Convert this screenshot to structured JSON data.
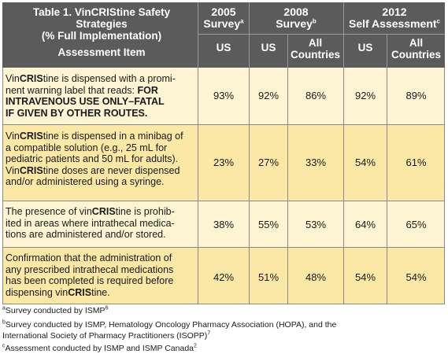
{
  "table": {
    "title_line1": "Table 1. VinCRIStine Safety Strategies",
    "title_line2": "(% Full Implementation)",
    "assessment_item": "Assessment Item",
    "col_2005": "2005",
    "col_2005_line2": "Survey",
    "col_2005_sup": "a",
    "col_2008": "2008",
    "col_2008_line2": "Survey",
    "col_2008_sup": "b",
    "col_2012": "2012",
    "col_2012_line2": "Self Assessment",
    "col_2012_sup": "c",
    "sub_us": "US",
    "sub_all_line1": "All",
    "sub_all_line2": "Countries",
    "colors": {
      "header_bg": "#5b5b5b",
      "row_odd": "#fdf4d3",
      "row_even": "#fbe7a6",
      "grid": "#8a8a8a"
    }
  },
  "rows": [
    {
      "lines": [
        "VinCRIStine is dispensed with a promi-",
        "nent warning label that reads: FOR",
        "INTRAVENOUS USE ONLY–FATAL",
        "IF GIVEN BY OTHER ROUTES."
      ],
      "values": [
        "93%",
        "92%",
        "86%",
        "92%",
        "89%"
      ]
    },
    {
      "lines": [
        "VinCRIStine is dispensed in a minibag of",
        "a compatible solution (e.g., 25 mL for",
        "pediatric patients and 50 mL for adults).",
        "VinCRIStine doses are never dispensed",
        "and/or administered using a syringe."
      ],
      "values": [
        "23%",
        "27%",
        "33%",
        "54%",
        "61%"
      ]
    },
    {
      "lines": [
        "The presence of vinCRIStine is prohib-",
        "ited in areas where intrathecal medica-",
        "tions are administered and/or stored."
      ],
      "values": [
        "38%",
        "55%",
        "53%",
        "64%",
        "65%"
      ]
    },
    {
      "lines": [
        "Confirmation that the administration of",
        "any prescribed intrathecal medications",
        "has been completed is required before",
        "dispensing vinCRIStine."
      ],
      "values": [
        "42%",
        "51%",
        "48%",
        "54%",
        "54%"
      ]
    }
  ],
  "footnotes": {
    "a_mark": "a",
    "a_text": "Survey conducted by ISMP",
    "a_ref": "6",
    "b_mark": "b",
    "b_text_line1": "Survey conducted by ISMP, Hematology Oncology Pharmacy Association (HOPA), and the",
    "b_text_line2": "International Society of Pharmacy Practitioners (ISOPP)",
    "b_ref": "7",
    "c_mark": "c",
    "c_text": "Assessment conducted by ISMP and ISMP Canada",
    "c_ref": "2"
  }
}
